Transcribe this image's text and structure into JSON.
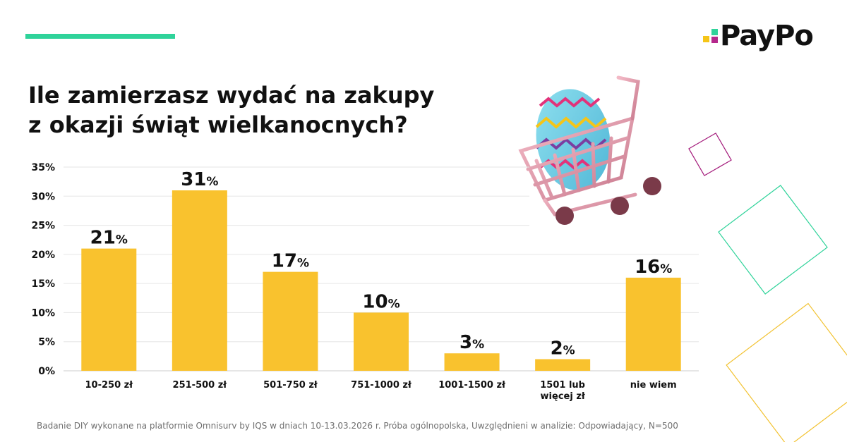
{
  "brand": {
    "name": "PayPo",
    "accent_color": "#2fd39a",
    "logo_colors": [
      "#f5c518",
      "#2fd39a",
      "#b5278c"
    ]
  },
  "title_lines": [
    "Ile zamierzasz wydać na zakupy",
    "z okazji świąt wielkanocnych?"
  ],
  "footnote": "Badanie DIY wykonane na platformie Omnisurv by IQS w dniach 10-13.03.2026 r.  Próba ogólnopolska, Uwzględnieni w analizie: Odpowiadający, N=500",
  "illustration": "shopping-cart-with-easter-egg",
  "chart_data": {
    "type": "bar",
    "categories": [
      [
        "10-250 zł"
      ],
      [
        "251-500 zł"
      ],
      [
        "501-750 zł"
      ],
      [
        "751-1000 zł"
      ],
      [
        "1001-1500 zł"
      ],
      [
        "1501 lub",
        "więcej zł"
      ],
      [
        "nie wiem"
      ]
    ],
    "values": [
      21,
      31,
      17,
      10,
      3,
      2,
      16
    ],
    "value_labels": [
      "21",
      "31",
      "17",
      "10",
      "3",
      "2",
      "16"
    ],
    "value_suffix": "%",
    "yticks": [
      "0%",
      "5%",
      "10%",
      "15%",
      "20%",
      "25%",
      "30%",
      "35%"
    ],
    "ylim": [
      0,
      35
    ],
    "grid": true,
    "bar_color": "#f9c22e",
    "title": "Ile zamierzasz wydać na zakupy z okazji świąt wielkanocnych?",
    "xlabel": "",
    "ylabel": ""
  }
}
